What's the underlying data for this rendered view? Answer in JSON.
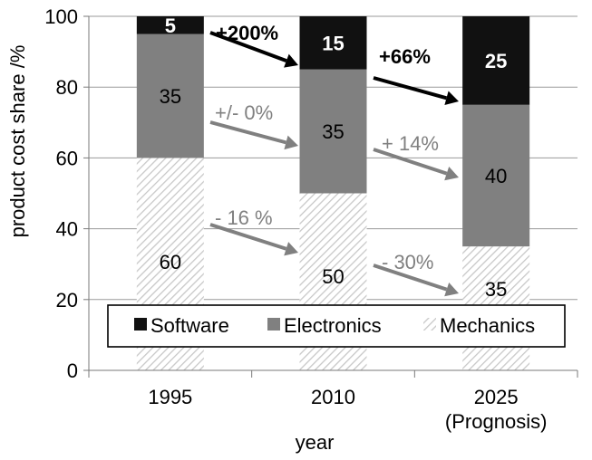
{
  "chart_data": {
    "type": "bar",
    "stacked": true,
    "xlabel": "year",
    "ylabel": "product cost share /%",
    "ylim": [
      0,
      100
    ],
    "yticks": [
      0,
      20,
      40,
      60,
      80,
      100
    ],
    "grid": true,
    "legend_position": "bottom, inside plot",
    "categories": [
      {
        "line1": "1995",
        "line2": ""
      },
      {
        "line1": "2010",
        "line2": ""
      },
      {
        "line1": "2025",
        "line2": "(Prognosis)"
      }
    ],
    "series": [
      {
        "name": "Mechanics",
        "values": [
          60,
          50,
          35
        ],
        "labels": [
          "60",
          "50",
          "35"
        ],
        "color": "#ffffff",
        "pattern": "hatched"
      },
      {
        "name": "Electronics",
        "values": [
          35,
          35,
          40
        ],
        "labels": [
          "35",
          "35",
          "40"
        ],
        "color": "#808080",
        "pattern": "solid"
      },
      {
        "name": "Software",
        "values": [
          5,
          15,
          25
        ],
        "labels": [
          "5",
          "15",
          "25"
        ],
        "color": "#111111",
        "pattern": "solid"
      }
    ],
    "legend_order": [
      "Software",
      "Electronics",
      "Mechanics"
    ],
    "annotations": [
      {
        "text": "+200%",
        "series": "Software",
        "from": 0,
        "to": 1,
        "color": "#000000",
        "bold": true
      },
      {
        "text": "+66%",
        "series": "Software",
        "from": 1,
        "to": 2,
        "color": "#000000",
        "bold": true
      },
      {
        "text": "+/- 0%",
        "series": "Electronics",
        "from": 0,
        "to": 1,
        "color": "#808080",
        "bold": false
      },
      {
        "text": "+ 14%",
        "series": "Electronics",
        "from": 1,
        "to": 2,
        "color": "#808080",
        "bold": false
      },
      {
        "text": "- 16 %",
        "series": "Mechanics",
        "from": 0,
        "to": 1,
        "color": "#808080",
        "bold": false
      },
      {
        "text": "- 30%",
        "series": "Mechanics",
        "from": 1,
        "to": 2,
        "color": "#808080",
        "bold": false
      }
    ]
  }
}
